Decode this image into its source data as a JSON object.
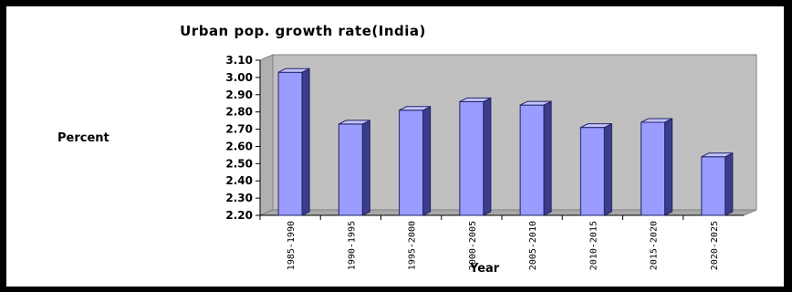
{
  "chart_data": {
    "type": "bar",
    "title": "Urban pop. growth rate(India)",
    "xlabel": "Year",
    "ylabel": "Percent",
    "categories": [
      "1985-1990",
      "1990-1995",
      "1995-2000",
      "2000-2005",
      "2005-2010",
      "2010-2015",
      "2015-2020",
      "2020-2025"
    ],
    "values": [
      3.03,
      2.73,
      2.81,
      2.86,
      2.84,
      2.71,
      2.74,
      2.54
    ],
    "ylim": [
      2.2,
      3.1
    ],
    "yticks": [
      "3.10",
      "3.00",
      "2.90",
      "2.80",
      "2.70",
      "2.60",
      "2.50",
      "2.40",
      "2.30",
      "2.20"
    ],
    "grid": false,
    "legend": "none",
    "colors": {
      "bar_front": "#9a9cff",
      "bar_side": "#3b3d8a",
      "bar_top": "#c4c5ff",
      "wall": "#c0c0c0",
      "floor": "#a8a8a8"
    }
  }
}
